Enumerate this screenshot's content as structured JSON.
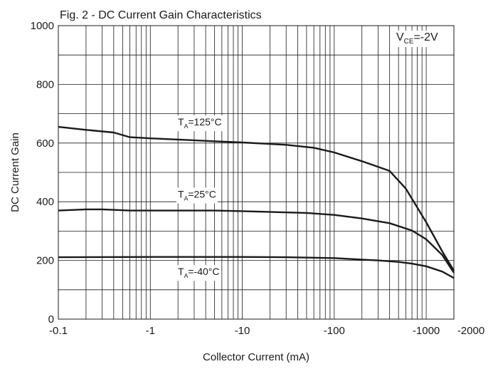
{
  "chart_data": {
    "type": "line",
    "title": "Fig. 2 - DC Current Gain Characteristics",
    "xlabel": "Collector Current (mA)",
    "ylabel": "DC Current Gain",
    "x_scale": "log",
    "x_magnitude_range": [
      0.1,
      2000
    ],
    "y_range": [
      0,
      1000
    ],
    "grid": true,
    "x_ticks": [
      {
        "value": 0.1,
        "label": "-0.1"
      },
      {
        "value": 1,
        "label": "-1"
      },
      {
        "value": 10,
        "label": "-10"
      },
      {
        "value": 100,
        "label": "-100"
      },
      {
        "value": 1000,
        "label": "-1000"
      },
      {
        "value": 2000,
        "label": "-2000"
      }
    ],
    "y_ticks": [
      {
        "value": 0,
        "label": "0"
      },
      {
        "value": 200,
        "label": "200"
      },
      {
        "value": 400,
        "label": "400"
      },
      {
        "value": 600,
        "label": "600"
      },
      {
        "value": 800,
        "label": "800"
      },
      {
        "value": 1000,
        "label": "1000"
      }
    ],
    "annotation": {
      "main": "V",
      "sub": "CE",
      "rest": "=-2V"
    },
    "series": [
      {
        "label": {
          "main": "T",
          "sub": "A",
          "rest": "=125°C"
        },
        "x": [
          0.1,
          0.2,
          0.4,
          0.6,
          1,
          2,
          5,
          10,
          30,
          60,
          100,
          200,
          400,
          600,
          1000,
          1500,
          2000
        ],
        "y": [
          655,
          645,
          636,
          620,
          616,
          612,
          606,
          602,
          594,
          584,
          568,
          538,
          505,
          445,
          330,
          230,
          165
        ]
      },
      {
        "label": {
          "main": "T",
          "sub": "A",
          "rest": "=25°C"
        },
        "x": [
          0.1,
          0.2,
          0.3,
          0.6,
          1,
          5,
          10,
          50,
          100,
          200,
          400,
          700,
          1000,
          1500,
          2000
        ],
        "y": [
          370,
          374,
          374,
          370,
          370,
          370,
          368,
          362,
          355,
          343,
          327,
          302,
          272,
          218,
          158
        ]
      },
      {
        "label": {
          "main": "T",
          "sub": "A",
          "rest": "=-40°C"
        },
        "x": [
          0.1,
          1,
          10,
          30,
          100,
          200,
          300,
          500,
          700,
          1000,
          1500,
          2000
        ],
        "y": [
          211,
          212,
          212,
          211,
          208,
          203,
          200,
          195,
          189,
          180,
          162,
          140
        ]
      }
    ]
  }
}
